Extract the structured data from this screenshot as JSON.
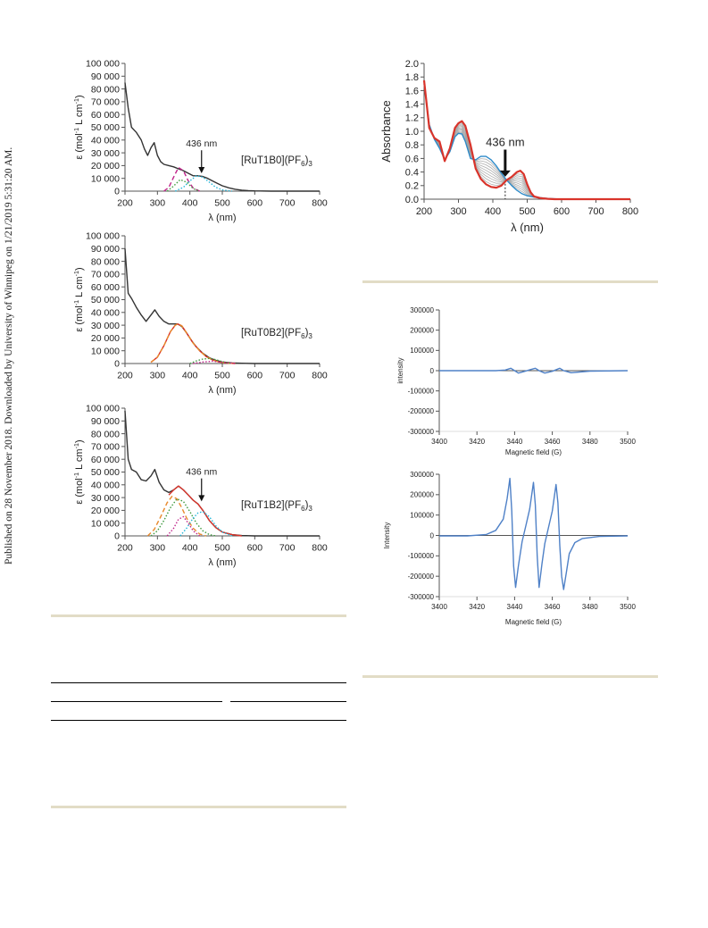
{
  "side_note": "Published on 28 November 2018. Downloaded by University of Winnipeg on 1/21/2019 5:31:20 AM.",
  "colors": {
    "rule": "#e2dcc6",
    "black_curve": "#333333",
    "blue": "#2e8bc9",
    "red": "#d9342b",
    "gray": "#9a9a9a",
    "epr_blue": "#4f81c7",
    "magenta": "#c0238a",
    "cyan": "#22b5d8",
    "green": "#3f9a3f",
    "orange": "#e8892b"
  },
  "chart_data": [
    {
      "type": "line",
      "label": "[RuT1B0](PF6)3",
      "label_main": "[RuT1B0](PF",
      "label_sub": "6",
      "label_end": ")3",
      "xlabel": "λ (nm)",
      "ylabel_main": "ε (mol",
      "ylabel_sup": "-1",
      "ylabel_rest": " L cm",
      "ylabel_sup2": "-1",
      "ylabel_end": ")",
      "xlim": [
        200,
        800
      ],
      "ylim": [
        0,
        100000
      ],
      "xticks": [
        "200",
        "300",
        "400",
        "500",
        "600",
        "700",
        "800"
      ],
      "yticks": [
        "0",
        "10 000",
        "20 000",
        "30 000",
        "40 000",
        "50 000",
        "60 000",
        "70 000",
        "80 000",
        "90 000",
        "100 000"
      ],
      "annotation": "436 nm",
      "annotation_x": 436,
      "series": [
        {
          "color": "#333333",
          "style": "solid",
          "x": [
            200,
            210,
            220,
            235,
            250,
            260,
            270,
            280,
            290,
            300,
            310,
            320,
            335,
            350,
            365,
            380,
            395,
            410,
            425,
            440,
            455,
            470,
            485,
            500,
            520,
            540,
            560,
            580,
            600,
            650,
            700,
            800
          ],
          "y": [
            85000,
            65000,
            50000,
            46000,
            40000,
            33000,
            28000,
            34000,
            38000,
            28000,
            23000,
            21000,
            20000,
            19000,
            17500,
            16000,
            14000,
            12000,
            12000,
            11500,
            10000,
            8000,
            6000,
            4200,
            2600,
            1500,
            800,
            400,
            200,
            0,
            0,
            0
          ]
        },
        {
          "color": "#c0238a",
          "style": "dashed",
          "x": [
            320,
            335,
            350,
            365,
            380,
            395,
            410,
            430
          ],
          "y": [
            0,
            3000,
            11000,
            18500,
            16000,
            8000,
            2500,
            0
          ]
        },
        {
          "color": "#22b5d8",
          "style": "dotted",
          "x": [
            355,
            380,
            400,
            420,
            440,
            460,
            480,
            500,
            530
          ],
          "y": [
            0,
            3000,
            8000,
            12000,
            11000,
            7000,
            3000,
            1000,
            0
          ]
        },
        {
          "color": "#3f9a3f",
          "style": "dotted",
          "x": [
            330,
            350,
            370,
            390,
            410,
            430
          ],
          "y": [
            0,
            4000,
            9000,
            7000,
            2000,
            0
          ]
        }
      ]
    },
    {
      "type": "line",
      "label": "[RuT0B2](PF6)3",
      "label_main": "[RuT0B2](PF",
      "label_sub": "6",
      "label_end": ")3",
      "xlabel": "λ (nm)",
      "ylabel_main": "ε (mol",
      "ylabel_sup": "-1",
      "ylabel_rest": " L cm",
      "ylabel_sup2": "-1",
      "ylabel_end": ")",
      "xlim": [
        200,
        800
      ],
      "ylim": [
        0,
        100000
      ],
      "xticks": [
        "200",
        "300",
        "400",
        "500",
        "600",
        "700",
        "800"
      ],
      "yticks": [
        "0",
        "10 000",
        "20 000",
        "30 000",
        "40 000",
        "50 000",
        "60 000",
        "70 000",
        "80 000",
        "90 000",
        "100 000"
      ],
      "series": [
        {
          "color": "#333333",
          "style": "solid",
          "x": [
            200,
            210,
            220,
            235,
            250,
            265,
            280,
            292,
            305,
            320,
            335,
            350,
            362,
            375,
            390,
            405,
            420,
            440,
            460,
            480,
            500,
            530,
            560,
            600,
            650,
            800
          ],
          "y": [
            90000,
            55000,
            51000,
            44000,
            38000,
            33000,
            38000,
            42000,
            37000,
            33000,
            31000,
            31000,
            31000,
            29000,
            24000,
            18000,
            13000,
            8000,
            4500,
            2500,
            1200,
            500,
            200,
            0,
            0,
            0
          ]
        },
        {
          "color": "#d9342b",
          "style": "solid",
          "x": [
            280,
            300,
            320,
            340,
            355,
            362,
            375,
            390,
            410,
            430,
            450,
            470,
            490,
            510,
            540
          ],
          "y": [
            1000,
            5000,
            14000,
            25000,
            30000,
            31000,
            29500,
            24000,
            16000,
            10000,
            5500,
            2800,
            1200,
            500,
            0
          ]
        },
        {
          "color": "#e8892b",
          "style": "dashed",
          "x": [
            280,
            300,
            320,
            340,
            355,
            362,
            375,
            390,
            410,
            430,
            450,
            470,
            490,
            510,
            540
          ],
          "y": [
            1000,
            5000,
            14000,
            25000,
            30000,
            31000,
            29500,
            24000,
            16000,
            10000,
            5500,
            2800,
            1200,
            500,
            0
          ]
        },
        {
          "color": "#3f9a3f",
          "style": "dotted",
          "x": [
            400,
            420,
            440,
            460,
            480,
            500,
            530
          ],
          "y": [
            0,
            2000,
            3500,
            4000,
            3000,
            1500,
            0
          ]
        },
        {
          "color": "#c0238a",
          "style": "dotted",
          "x": [
            410,
            440,
            470,
            500,
            540
          ],
          "y": [
            0,
            1200,
            1800,
            1000,
            0
          ]
        }
      ]
    },
    {
      "type": "line",
      "label": "[RuT1B2](PF6)3",
      "label_main": "[RuT1B2](PF",
      "label_sub": "6",
      "label_end": ")3",
      "xlabel": "λ (nm)",
      "ylabel_main": "ε (mol",
      "ylabel_sup": "-1",
      "ylabel_rest": " L cm",
      "ylabel_sup2": "-1",
      "ylabel_end": ")",
      "xlim": [
        200,
        800
      ],
      "ylim": [
        0,
        100000
      ],
      "xticks": [
        "200",
        "300",
        "400",
        "500",
        "600",
        "700",
        "800"
      ],
      "yticks": [
        "0",
        "10 000",
        "20 000",
        "30 000",
        "40 000",
        "50 000",
        "60 000",
        "70 000",
        "80 000",
        "90 000",
        "100 000"
      ],
      "annotation": "436 nm",
      "annotation_x": 436,
      "series": [
        {
          "color": "#333333",
          "style": "solid",
          "x": [
            200,
            210,
            220,
            235,
            250,
            265,
            280,
            292,
            305,
            320,
            335,
            350,
            365,
            380,
            395,
            410,
            425,
            440,
            460,
            480,
            500,
            530,
            560,
            600,
            650,
            800
          ],
          "y": [
            98000,
            60000,
            52000,
            50000,
            44000,
            43000,
            47000,
            52000,
            42000,
            36000,
            34000,
            36000,
            39000,
            36000,
            32000,
            28000,
            25000,
            20000,
            12000,
            6500,
            3000,
            1000,
            300,
            0,
            0,
            0
          ]
        },
        {
          "color": "#d9342b",
          "style": "solid",
          "x": [
            335,
            350,
            365,
            380,
            395,
            410,
            425,
            440,
            460,
            480,
            500,
            530,
            560
          ],
          "y": [
            32000,
            36000,
            39000,
            36000,
            32000,
            28000,
            25000,
            20000,
            12000,
            6500,
            3000,
            1000,
            0
          ]
        },
        {
          "color": "#e8892b",
          "style": "dashed",
          "x": [
            270,
            290,
            310,
            330,
            345,
            360,
            375,
            390,
            410,
            430,
            450
          ],
          "y": [
            0,
            5000,
            15000,
            26000,
            31000,
            29000,
            22000,
            14000,
            6000,
            1500,
            0
          ]
        },
        {
          "color": "#3f9a3f",
          "style": "dotted",
          "x": [
            280,
            300,
            320,
            340,
            360,
            380,
            400,
            420,
            440,
            460,
            480
          ],
          "y": [
            0,
            4000,
            12000,
            22000,
            29000,
            27000,
            19000,
            10000,
            4000,
            1000,
            0
          ]
        },
        {
          "color": "#c0238a",
          "style": "dotted",
          "x": [
            330,
            350,
            365,
            380,
            395,
            410,
            430
          ],
          "y": [
            0,
            6000,
            13000,
            15000,
            10000,
            4000,
            0
          ]
        },
        {
          "color": "#22b5d8",
          "style": "dotted",
          "x": [
            370,
            390,
            410,
            425,
            440,
            460,
            480,
            500,
            530
          ],
          "y": [
            0,
            6000,
            14000,
            18000,
            19000,
            15000,
            8000,
            3000,
            0
          ]
        }
      ]
    },
    {
      "type": "line",
      "xlabel": "λ (nm)",
      "ylabel": "Absorbance",
      "xlim": [
        200,
        800
      ],
      "ylim": [
        0,
        2.0
      ],
      "xticks": [
        "200",
        "300",
        "400",
        "500",
        "600",
        "700",
        "800"
      ],
      "yticks": [
        "0.0",
        "0.2",
        "0.4",
        "0.6",
        "0.8",
        "1.0",
        "1.2",
        "1.4",
        "1.6",
        "1.8",
        "2.0"
      ],
      "annotation": "436 nm",
      "annotation_x": 436,
      "isosbestic_y": 0.28,
      "series": [
        {
          "color": "#2e8bc9",
          "style": "solid",
          "x": [
            200,
            215,
            230,
            245,
            260,
            275,
            290,
            300,
            310,
            320,
            335,
            350,
            365,
            380,
            395,
            410,
            425,
            440,
            455,
            470,
            485,
            500,
            520,
            540,
            560,
            580,
            600,
            650,
            800
          ],
          "y": [
            1.7,
            1.1,
            0.88,
            0.75,
            0.58,
            0.7,
            0.92,
            0.97,
            0.96,
            0.85,
            0.6,
            0.58,
            0.63,
            0.63,
            0.58,
            0.49,
            0.38,
            0.28,
            0.2,
            0.13,
            0.08,
            0.05,
            0.03,
            0.02,
            0.01,
            0.005,
            0,
            0,
            0
          ]
        },
        {
          "color": "#d9342b",
          "style": "solid",
          "x": [
            200,
            215,
            230,
            245,
            260,
            275,
            290,
            300,
            310,
            320,
            335,
            350,
            365,
            380,
            395,
            410,
            425,
            440,
            455,
            470,
            480,
            490,
            500,
            510,
            520,
            540,
            560,
            580,
            600,
            650,
            800
          ],
          "y": [
            1.75,
            1.05,
            0.9,
            0.85,
            0.56,
            0.75,
            1.05,
            1.12,
            1.15,
            1.08,
            0.8,
            0.45,
            0.3,
            0.22,
            0.18,
            0.17,
            0.2,
            0.28,
            0.33,
            0.4,
            0.42,
            0.37,
            0.22,
            0.1,
            0.04,
            0.015,
            0.005,
            0,
            0,
            0,
            0
          ]
        },
        {
          "color": "#9a9a9a",
          "style": "solid",
          "x": [
            200,
            215,
            230,
            245,
            260,
            275,
            290,
            300,
            310,
            320,
            335,
            350,
            365,
            380,
            395,
            410,
            425,
            440,
            455,
            470,
            485,
            500,
            520,
            540,
            560,
            600,
            800
          ],
          "y": [
            1.72,
            1.08,
            0.89,
            0.8,
            0.57,
            0.72,
            0.98,
            1.04,
            1.05,
            0.96,
            0.7,
            0.52,
            0.46,
            0.42,
            0.38,
            0.33,
            0.29,
            0.28,
            0.26,
            0.26,
            0.24,
            0.14,
            0.06,
            0.02,
            0.01,
            0,
            0
          ]
        }
      ]
    },
    {
      "type": "line",
      "xlabel": "Magnetic field (G)",
      "ylabel": "intensity",
      "xlim": [
        3400,
        3500
      ],
      "ylim": [
        -300000,
        300000
      ],
      "xticks": [
        "3400",
        "3420",
        "3440",
        "3460",
        "3480",
        "3500"
      ],
      "yticks": [
        "300000",
        "200000",
        "100000",
        "0",
        "-100000",
        "-200000",
        "-300000"
      ],
      "series": [
        {
          "color": "#4f81c7",
          "style": "solid",
          "x": [
            3400,
            3430,
            3435,
            3438,
            3440,
            3442,
            3445,
            3448,
            3451,
            3453,
            3456,
            3460,
            3464,
            3466,
            3470,
            3480,
            3500
          ],
          "y": [
            0,
            0,
            3000,
            12000,
            0,
            -12000,
            -4000,
            4000,
            12000,
            0,
            -12000,
            -3000,
            12000,
            0,
            -10000,
            -2000,
            0
          ]
        }
      ]
    },
    {
      "type": "line",
      "xlabel": "Magnetic field (G)",
      "ylabel": "Intensity",
      "xlim": [
        3400,
        3500
      ],
      "ylim": [
        -300000,
        300000
      ],
      "xticks": [
        "3400",
        "3420",
        "3440",
        "3460",
        "3480",
        "3500"
      ],
      "yticks": [
        "300000",
        "200000",
        "100000",
        "0",
        "-100000",
        "-200000",
        "-300000"
      ],
      "series": [
        {
          "color": "#4f81c7",
          "style": "solid",
          "x": [
            3400,
            3415,
            3425,
            3430,
            3434,
            3436,
            3437.5,
            3438.5,
            3439.5,
            3440.5,
            3442,
            3444,
            3446,
            3448,
            3450,
            3451,
            3452,
            3453,
            3454.5,
            3456,
            3458,
            3460,
            3462,
            3463,
            3464,
            3465,
            3466,
            3467.5,
            3469,
            3472,
            3476,
            3485,
            3500
          ],
          "y": [
            -2000,
            -2000,
            5000,
            25000,
            80000,
            180000,
            280000,
            120000,
            -150000,
            -255000,
            -150000,
            -30000,
            50000,
            130000,
            260000,
            150000,
            -100000,
            -255000,
            -140000,
            -40000,
            40000,
            120000,
            250000,
            160000,
            -50000,
            -200000,
            -265000,
            -180000,
            -90000,
            -35000,
            -15000,
            -5000,
            -2000
          ]
        }
      ]
    }
  ]
}
